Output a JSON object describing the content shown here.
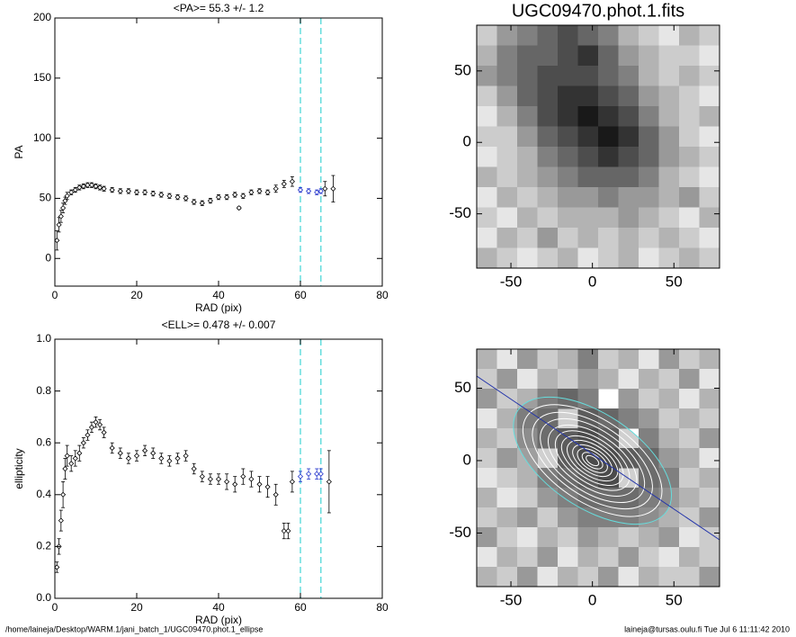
{
  "chart_data": [
    {
      "type": "errorbar",
      "title": "<PA>=  55.3 +/-   1.2",
      "x_label": "RAD (pix)",
      "y_label": "PA",
      "xlim": [
        0,
        80
      ],
      "ylim": [
        -23,
        200
      ],
      "xticks": [
        0,
        20,
        40,
        60,
        80
      ],
      "yticks": [
        0,
        50,
        100,
        150,
        200
      ],
      "reference_lines": [
        60,
        65
      ],
      "reference_color": "#66dddd",
      "series": [
        {
          "color": "#000000",
          "x": [
            0.5,
            1,
            1.5,
            2,
            2.5,
            3,
            4,
            5,
            6,
            7,
            8,
            9,
            10,
            11,
            12,
            14,
            16,
            18,
            20,
            22,
            24,
            26,
            28,
            30,
            32,
            34,
            36,
            38,
            40,
            42,
            44,
            45,
            46,
            48,
            50,
            52,
            54,
            56,
            58
          ],
          "values": [
            15,
            28,
            35,
            42,
            48,
            52,
            55,
            57,
            59,
            60,
            61,
            61,
            60,
            59,
            58,
            57,
            56,
            56,
            55,
            55,
            54,
            53,
            52,
            51,
            50,
            47,
            46,
            48,
            51,
            51,
            53,
            42,
            52,
            55,
            56,
            55,
            58,
            62,
            64
          ],
          "errors": [
            8,
            6,
            5,
            4,
            3,
            3,
            2,
            2,
            2,
            2,
            2,
            2,
            2,
            2,
            2,
            2,
            2,
            2,
            2,
            2,
            2,
            2,
            2,
            2,
            2,
            2,
            2,
            2,
            2,
            2,
            2,
            1,
            2,
            2,
            2,
            2,
            3,
            3,
            4
          ]
        },
        {
          "color": "#2233cc",
          "x": [
            60,
            62,
            64,
            65
          ],
          "values": [
            57,
            56,
            55,
            56
          ],
          "errors": [
            2,
            2,
            2,
            2
          ]
        },
        {
          "color": "#000000",
          "x": [
            66,
            68
          ],
          "values": [
            58,
            58
          ],
          "errors": [
            6,
            11
          ]
        }
      ]
    },
    {
      "type": "errorbar",
      "title": "<ELL>= 0.478 +/-  0.007",
      "x_label": "RAD (pix)",
      "y_label": "ellipticity",
      "xlim": [
        0,
        80
      ],
      "ylim": [
        0,
        1
      ],
      "xticks": [
        0,
        20,
        40,
        60,
        80
      ],
      "yticks": [
        {
          "value": 0,
          "label": "0.0"
        },
        0.2,
        0.4,
        0.6,
        0.8,
        {
          "value": 1,
          "label": "1.0"
        }
      ],
      "reference_lines": [
        60,
        65
      ],
      "reference_color": "#66dddd",
      "series": [
        {
          "color": "#000000",
          "x": [
            0.5,
            1,
            1.5,
            2,
            2.5,
            3,
            4,
            5,
            6,
            7,
            8,
            9,
            10,
            11,
            12,
            14,
            16,
            18,
            20,
            22,
            24,
            26,
            28,
            30,
            32,
            34,
            36,
            38,
            40,
            42,
            44,
            46,
            48,
            50,
            52,
            54,
            56,
            57,
            58
          ],
          "values": [
            0.12,
            0.2,
            0.3,
            0.4,
            0.5,
            0.55,
            0.52,
            0.54,
            0.56,
            0.6,
            0.63,
            0.66,
            0.68,
            0.67,
            0.64,
            0.58,
            0.56,
            0.54,
            0.55,
            0.57,
            0.56,
            0.54,
            0.53,
            0.54,
            0.55,
            0.5,
            0.47,
            0.46,
            0.46,
            0.45,
            0.44,
            0.47,
            0.46,
            0.44,
            0.43,
            0.4,
            0.26,
            0.26,
            0.45
          ],
          "errors": [
            0.02,
            0.03,
            0.04,
            0.05,
            0.04,
            0.04,
            0.03,
            0.03,
            0.03,
            0.02,
            0.02,
            0.02,
            0.02,
            0.02,
            0.02,
            0.02,
            0.02,
            0.02,
            0.02,
            0.02,
            0.02,
            0.02,
            0.02,
            0.02,
            0.02,
            0.02,
            0.02,
            0.02,
            0.02,
            0.03,
            0.03,
            0.03,
            0.03,
            0.03,
            0.04,
            0.04,
            0.03,
            0.03,
            0.04
          ]
        },
        {
          "color": "#2233cc",
          "x": [
            60,
            62,
            64,
            65
          ],
          "values": [
            0.47,
            0.48,
            0.48,
            0.48
          ],
          "errors": [
            0.02,
            0.02,
            0.02,
            0.02
          ]
        },
        {
          "color": "#000000",
          "x": [
            67
          ],
          "values": [
            0.45
          ],
          "errors": [
            0.12
          ]
        }
      ]
    },
    {
      "type": "heatmap",
      "title": "UGC09470.phot.1.fits",
      "xlim": [
        -71,
        78
      ],
      "ylim": [
        -88,
        82
      ],
      "xticks": [
        -50,
        0,
        50
      ],
      "yticks": [
        -50,
        0,
        50
      ],
      "z": [
        [
          0.2,
          0.4,
          0.5,
          0.6,
          0.7,
          0.6,
          0.5,
          0.3,
          0.2,
          0.1,
          0.3,
          0.2
        ],
        [
          0.3,
          0.5,
          0.6,
          0.6,
          0.7,
          0.8,
          0.6,
          0.4,
          0.3,
          0.2,
          0.2,
          0.1
        ],
        [
          0.4,
          0.5,
          0.6,
          0.7,
          0.7,
          0.7,
          0.6,
          0.5,
          0.3,
          0.2,
          0.3,
          0.2
        ],
        [
          0.2,
          0.4,
          0.6,
          0.7,
          0.8,
          0.8,
          0.7,
          0.6,
          0.4,
          0.3,
          0.2,
          0.1
        ],
        [
          0.1,
          0.3,
          0.5,
          0.7,
          0.8,
          0.9,
          0.8,
          0.7,
          0.5,
          0.3,
          0.2,
          0.3
        ],
        [
          0.2,
          0.2,
          0.4,
          0.6,
          0.7,
          0.8,
          0.9,
          0.8,
          0.6,
          0.4,
          0.2,
          0.1
        ],
        [
          0.1,
          0.2,
          0.3,
          0.5,
          0.6,
          0.7,
          0.8,
          0.7,
          0.6,
          0.4,
          0.3,
          0.2
        ],
        [
          0.3,
          0.2,
          0.3,
          0.4,
          0.5,
          0.6,
          0.6,
          0.6,
          0.5,
          0.3,
          0.2,
          0.1
        ],
        [
          0.1,
          0.3,
          0.2,
          0.3,
          0.4,
          0.4,
          0.5,
          0.4,
          0.4,
          0.3,
          0.4,
          0.2
        ],
        [
          0.2,
          0.1,
          0.3,
          0.2,
          0.3,
          0.3,
          0.3,
          0.4,
          0.3,
          0.2,
          0.1,
          0.3
        ],
        [
          0.1,
          0.3,
          0.2,
          0.4,
          0.2,
          0.3,
          0.2,
          0.3,
          0.2,
          0.3,
          0.2,
          0.1
        ],
        [
          0.3,
          0.2,
          0.1,
          0.2,
          0.3,
          0.1,
          0.2,
          0.3,
          0.1,
          0.2,
          0.3,
          0.2
        ]
      ]
    },
    {
      "type": "heatmap",
      "xlim": [
        -71,
        78
      ],
      "ylim": [
        -87,
        77
      ],
      "xticks": [
        -50,
        0,
        50
      ],
      "yticks": [
        -50,
        0,
        50
      ],
      "z": [
        [
          0.3,
          0.1,
          0.4,
          0.2,
          0.3,
          0.5,
          0.2,
          0.3,
          0.1,
          0.4,
          0.2,
          0.3
        ],
        [
          0.2,
          0.4,
          0.1,
          0.3,
          0.2,
          0.4,
          0.3,
          0.1,
          0.3,
          0.2,
          0.4,
          0.1
        ],
        [
          0.4,
          0.2,
          0.3,
          0.5,
          0.6,
          0.5,
          null,
          0.4,
          0.2,
          0.3,
          0.1,
          0.3
        ],
        [
          0.1,
          0.3,
          0.5,
          0.6,
          null,
          0.7,
          0.6,
          0.5,
          0.4,
          0.2,
          0.3,
          0.2
        ],
        [
          0.3,
          0.2,
          0.4,
          0.6,
          0.7,
          0.8,
          0.7,
          null,
          0.5,
          0.3,
          0.2,
          0.4
        ],
        [
          0.2,
          0.4,
          0.3,
          null,
          0.7,
          0.8,
          0.8,
          0.7,
          0.6,
          0.4,
          0.3,
          0.1
        ],
        [
          0.1,
          0.2,
          0.3,
          0.5,
          0.6,
          0.7,
          0.8,
          null,
          0.6,
          0.5,
          0.2,
          0.3
        ],
        [
          0.3,
          0.1,
          0.2,
          0.4,
          0.5,
          0.6,
          0.6,
          0.6,
          0.5,
          0.4,
          0.3,
          0.2
        ],
        [
          0.2,
          0.3,
          0.4,
          0.2,
          0.4,
          0.5,
          0.5,
          0.5,
          0.4,
          0.3,
          0.2,
          0.4
        ],
        [
          0.4,
          0.2,
          0.1,
          0.3,
          0.2,
          0.4,
          0.3,
          0.2,
          0.3,
          0.4,
          0.1,
          0.2
        ],
        [
          0.1,
          0.3,
          0.2,
          0.4,
          0.1,
          0.3,
          0.2,
          0.4,
          0.2,
          0.1,
          0.3,
          0.2
        ],
        [
          0.3,
          0.2,
          0.4,
          0.1,
          0.3,
          0.2,
          0.4,
          0.1,
          0.3,
          0.2,
          0.2,
          0.4
        ]
      ]
    }
  ],
  "footer": {
    "left": "/home/laineja/Desktop/WARM.1/jani_batch_1/UGC09470.phot.1_ellipse",
    "right": "laineja@tursas.oulu.fi  Tue Jul  6 11:11:42 2010"
  }
}
